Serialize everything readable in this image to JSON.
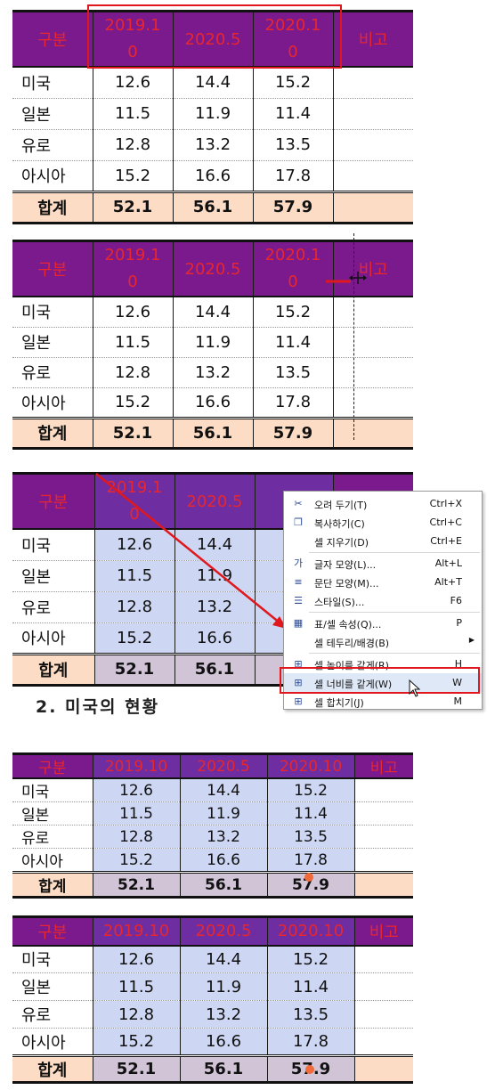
{
  "table": {
    "header": {
      "category": "구분",
      "c2019": "2019.10",
      "c2020_5": "2020.5",
      "c2020_10": "2020.10",
      "note": "비고"
    },
    "header_wrapped": {
      "c2019_line1": "2019.1",
      "c2019_line2": "0",
      "c2020_10_line1": "2020.1",
      "c2020_10_line2": "0"
    },
    "rows": [
      {
        "label": "미국",
        "v1": "12.6",
        "v2": "14.4",
        "v3": "15.2"
      },
      {
        "label": "일본",
        "v1": "11.5",
        "v2": "11.9",
        "v3": "11.4"
      },
      {
        "label": "유로",
        "v1": "12.8",
        "v2": "13.2",
        "v3": "13.5"
      },
      {
        "label": "아시아",
        "v1": "15.2",
        "v2": "16.6",
        "v3": "17.8"
      }
    ],
    "total": {
      "label": "합계",
      "v1": "52.1",
      "v2": "56.1",
      "v3": "57.9"
    }
  },
  "section_heading": "2. 미국의 현황",
  "context_menu": {
    "items": [
      {
        "label": "오려 두기(T)",
        "shortcut": "Ctrl+X",
        "icon": "scissors-icon"
      },
      {
        "label": "복사하기(C)",
        "shortcut": "Ctrl+C",
        "icon": "copy-icon"
      },
      {
        "label": "셀 지우기(D)",
        "shortcut": "Ctrl+E",
        "icon": ""
      },
      {
        "label": "글자 모양(L)...",
        "shortcut": "Alt+L",
        "icon": "char-shape-icon"
      },
      {
        "label": "문단 모양(M)...",
        "shortcut": "Alt+T",
        "icon": "paragraph-shape-icon"
      },
      {
        "label": "스타일(S)...",
        "shortcut": "F6",
        "icon": "style-icon"
      },
      {
        "label": "표/셀 속성(Q)...",
        "shortcut": "P",
        "icon": "table-props-icon"
      },
      {
        "label": "셀 테두리/배경(B)",
        "shortcut": "",
        "icon": ""
      },
      {
        "label": "셀 높이를 같게(R)",
        "shortcut": "H",
        "icon": "equal-height-icon"
      },
      {
        "label": "셀 너비를 같게(W)",
        "shortcut": "W",
        "icon": "equal-width-icon"
      },
      {
        "label": "셀 합치기(J)",
        "shortcut": "M",
        "icon": "merge-cells-icon"
      }
    ]
  },
  "colors": {
    "header_bg": "#7a1a8c",
    "header_text": "#e8262e",
    "total_bg": "#fcdcc4",
    "selection": "#cdd6f2",
    "highlight": "#e0181e"
  }
}
